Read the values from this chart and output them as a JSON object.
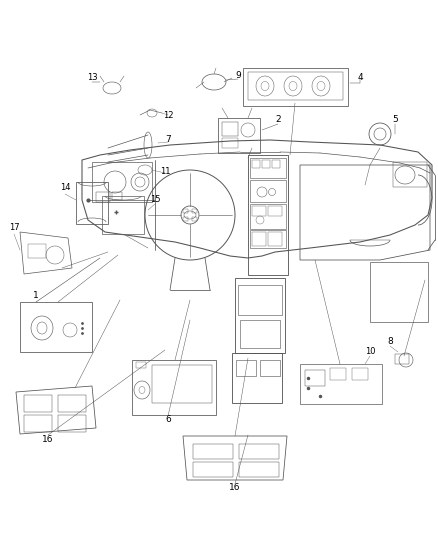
{
  "bg_color": "#ffffff",
  "fig_width": 4.38,
  "fig_height": 5.33,
  "dpi": 100,
  "lc": "#555555",
  "lc2": "#888888",
  "lw": 0.7
}
